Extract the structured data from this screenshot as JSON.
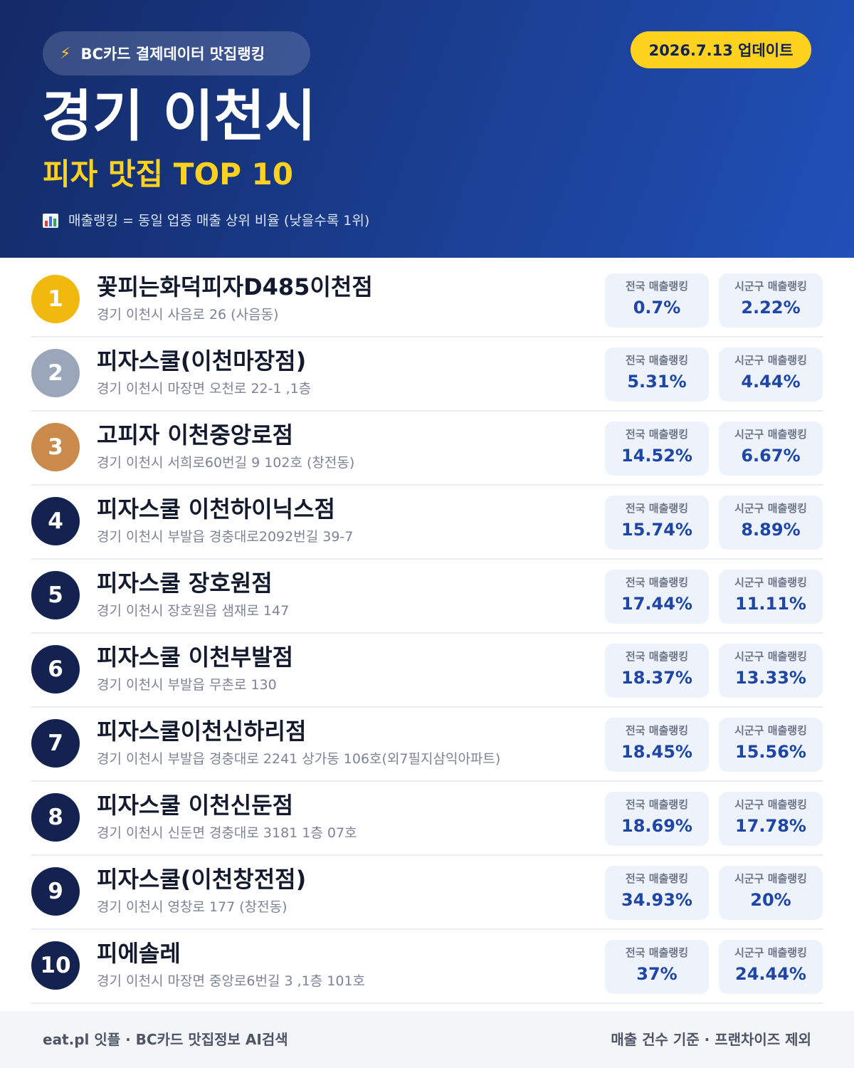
{
  "header": {
    "source_label": "BC카드 결제데이터 맛집랭킹",
    "source_icon": "bolt-icon",
    "update_date": "2026.7.13 업데이트",
    "city": "경기 이천시",
    "subtitle": "피자 맛집 TOP 10",
    "legend": "매출랭킹 = 동일 업종 매출 상위 비율 (낮을수록 1위)",
    "legend_icon": "bar-chart-icon"
  },
  "ranking": {
    "national_label": "전국 매출랭킹",
    "local_label": "시군구 매출랭킹",
    "items": [
      {
        "rank": "1",
        "name": "꽃피는화덕피자D485이천점",
        "address": "경기 이천시 사음로 26 (사음동)",
        "national": "0.7%",
        "local": "2.22%"
      },
      {
        "rank": "2",
        "name": "피자스쿨(이천마장점)",
        "address": "경기 이천시 마장면 오천로 22-1 ,1층",
        "national": "5.31%",
        "local": "4.44%"
      },
      {
        "rank": "3",
        "name": "고피자 이천중앙로점",
        "address": "경기 이천시 서희로60번길 9 102호 (창전동)",
        "national": "14.52%",
        "local": "6.67%"
      },
      {
        "rank": "4",
        "name": "피자스쿨 이천하이닉스점",
        "address": "경기 이천시 부발읍 경충대로2092번길 39-7",
        "national": "15.74%",
        "local": "8.89%"
      },
      {
        "rank": "5",
        "name": "피자스쿨 장호원점",
        "address": "경기 이천시 장호원읍 샘재로 147",
        "national": "17.44%",
        "local": "11.11%"
      },
      {
        "rank": "6",
        "name": "피자스쿨 이천부발점",
        "address": "경기 이천시 부발읍 무촌로 130",
        "national": "18.37%",
        "local": "13.33%"
      },
      {
        "rank": "7",
        "name": "피자스쿨이천신하리점",
        "address": "경기 이천시 부발읍 경충대로 2241 상가동 106호(외7필지삼익아파트)",
        "national": "18.45%",
        "local": "15.56%"
      },
      {
        "rank": "8",
        "name": "피자스쿨 이천신둔점",
        "address": "경기 이천시 신둔면 경충대로 3181 1층 07호",
        "national": "18.69%",
        "local": "17.78%"
      },
      {
        "rank": "9",
        "name": "피자스쿨(이천창전점)",
        "address": "경기 이천시 영창로 177 (창전동)",
        "national": "34.93%",
        "local": "20%"
      },
      {
        "rank": "10",
        "name": "피에솔레",
        "address": "경기 이천시 마장면 중앙로6번길 3 ,1층 101호",
        "national": "37%",
        "local": "24.44%"
      }
    ]
  },
  "footer": {
    "left": "eat.pl 잇플 · BC카드 맛집정보 AI검색",
    "right": "매출 건수 기준 · 프랜차이즈 제외"
  },
  "colors": {
    "header_bg": "#1b3f93",
    "accent_yellow": "#ffd21f",
    "gold": "#f1b90d",
    "silver": "#9aa7bb",
    "bronze": "#c98a4b",
    "rank_default": "#13224f",
    "stat_value": "#1d46a6"
  }
}
